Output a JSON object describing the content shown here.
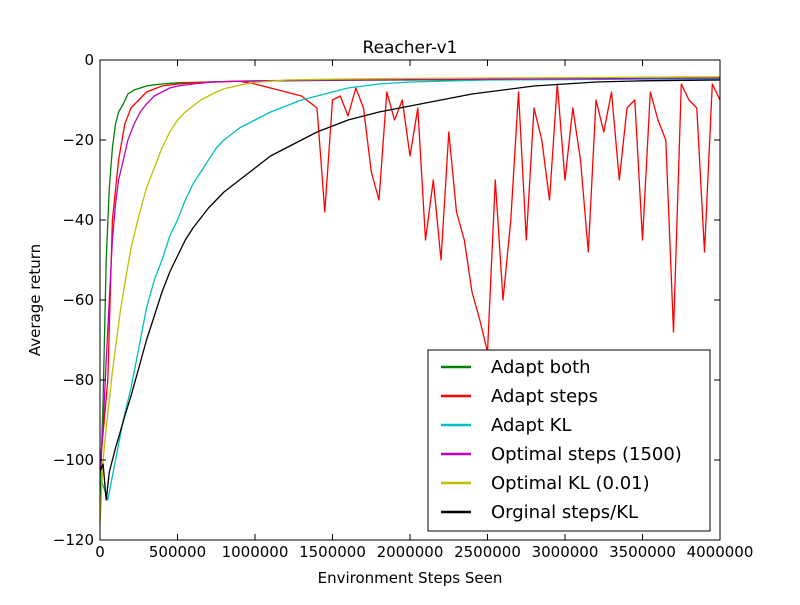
{
  "chart_data": {
    "type": "line",
    "title": "Reacher-v1",
    "xlabel": "Environment Steps Seen",
    "ylabel": "Average return",
    "xlim": [
      0,
      4000000
    ],
    "ylim": [
      -120,
      0
    ],
    "xticks": [
      0,
      500000,
      1000000,
      1500000,
      2000000,
      2500000,
      3000000,
      3500000,
      4000000
    ],
    "xtick_labels": [
      "0",
      "500000",
      "1000000",
      "1500000",
      "2000000",
      "2500000",
      "3000000",
      "3500000",
      "4000000"
    ],
    "yticks": [
      0,
      -20,
      -40,
      -60,
      -80,
      -100,
      -120
    ],
    "ytick_labels": [
      "0",
      "−20",
      "−40",
      "−60",
      "−80",
      "−100",
      "−120"
    ],
    "grid": false,
    "legend_position": "bottom-right",
    "series": [
      {
        "name": "Adapt both",
        "color": "#008000",
        "x": [
          0,
          20000,
          40000,
          60000,
          80000,
          100000,
          120000,
          150000,
          180000,
          220000,
          260000,
          300000,
          350000,
          400000,
          500000,
          600000,
          700000,
          800000,
          900000,
          1000000,
          1100000,
          1200000,
          1500000,
          2000000,
          2500000,
          3000000,
          3500000,
          4000000
        ],
        "y": [
          -110,
          -85,
          -50,
          -32,
          -22,
          -16,
          -13,
          -11,
          -8.5,
          -7.5,
          -7,
          -6.5,
          -6.2,
          -6,
          -5.7,
          -5.6,
          -5.5,
          -5.4,
          -5.3,
          -5.3,
          -5.2,
          -5.2,
          -5.1,
          -5,
          -4.9,
          -4.8,
          -4.7,
          -4.6
        ]
      },
      {
        "name": "Adapt steps",
        "color": "#ff0000",
        "x": [
          0,
          50000,
          80000,
          120000,
          160000,
          200000,
          250000,
          300000,
          400000,
          500000,
          600000,
          700000,
          800000,
          900000,
          1000000,
          1100000,
          1200000,
          1300000,
          1400000,
          1450000,
          1500000,
          1550000,
          1600000,
          1650000,
          1700000,
          1750000,
          1800000,
          1850000,
          1900000,
          1950000,
          2000000,
          2050000,
          2100000,
          2150000,
          2200000,
          2250000,
          2300000,
          2350000,
          2400000,
          2450000,
          2500000,
          2550000,
          2600000,
          2650000,
          2700000,
          2750000,
          2800000,
          2850000,
          2900000,
          2950000,
          3000000,
          3050000,
          3100000,
          3150000,
          3200000,
          3250000,
          3300000,
          3350000,
          3400000,
          3450000,
          3500000,
          3550000,
          3600000,
          3650000,
          3700000,
          3750000,
          3800000,
          3850000,
          3900000,
          3950000,
          4000000
        ],
        "y": [
          -102,
          -80,
          -40,
          -25,
          -16,
          -12,
          -10,
          -8,
          -6.5,
          -6,
          -5.7,
          -5.5,
          -5.4,
          -5.3,
          -6,
          -7,
          -8,
          -9,
          -12,
          -38,
          -10,
          -9,
          -14,
          -7,
          -12,
          -28,
          -35,
          -8,
          -15,
          -10,
          -24,
          -12,
          -45,
          -30,
          -50,
          -18,
          -38,
          -45,
          -58,
          -65,
          -73,
          -30,
          -60,
          -40,
          -8,
          -45,
          -12,
          -20,
          -35,
          -6,
          -30,
          -12,
          -25,
          -48,
          -10,
          -18,
          -8,
          -30,
          -12,
          -10,
          -45,
          -8,
          -15,
          -20,
          -68,
          -6,
          -10,
          -12,
          -48,
          -6,
          -10
        ]
      },
      {
        "name": "Adapt KL",
        "color": "#00bfbf",
        "x": [
          0,
          50000,
          100000,
          150000,
          200000,
          250000,
          300000,
          350000,
          400000,
          450000,
          500000,
          550000,
          600000,
          650000,
          700000,
          750000,
          800000,
          900000,
          1000000,
          1100000,
          1200000,
          1300000,
          1400000,
          1500000,
          1600000,
          1800000,
          2000000,
          2500000,
          3000000,
          3500000,
          4000000
        ],
        "y": [
          -104,
          -110,
          -100,
          -90,
          -82,
          -72,
          -62,
          -55,
          -50,
          -44,
          -40,
          -35,
          -31,
          -28,
          -25,
          -22,
          -20,
          -17,
          -15,
          -13,
          -11.5,
          -10,
          -9,
          -8,
          -7,
          -6,
          -5.5,
          -5,
          -4.9,
          -4.8,
          -4.8
        ]
      },
      {
        "name": "Optimal steps (1500)",
        "color": "#bf00bf",
        "x": [
          0,
          20000,
          40000,
          60000,
          80000,
          100000,
          120000,
          150000,
          180000,
          220000,
          260000,
          300000,
          350000,
          400000,
          450000,
          500000,
          600000,
          700000,
          800000,
          900000,
          1000000,
          1500000,
          2000000,
          2500000,
          3000000,
          3500000,
          4000000
        ],
        "y": [
          -102,
          -92,
          -75,
          -60,
          -45,
          -36,
          -30,
          -25,
          -20,
          -16,
          -13,
          -11,
          -9,
          -8,
          -7,
          -6.5,
          -6,
          -5.6,
          -5.4,
          -5.3,
          -5.2,
          -5,
          -4.9,
          -4.8,
          -4.7,
          -4.6,
          -4.5
        ]
      },
      {
        "name": "Optimal KL (0.01)",
        "color": "#bfbf00",
        "x": [
          0,
          20000,
          40000,
          60000,
          80000,
          100000,
          130000,
          160000,
          200000,
          250000,
          300000,
          350000,
          400000,
          450000,
          500000,
          550000,
          600000,
          650000,
          700000,
          750000,
          800000,
          900000,
          1000000,
          1200000,
          1500000,
          2000000,
          2500000,
          3000000,
          3500000,
          4000000
        ],
        "y": [
          -116,
          -100,
          -92,
          -85,
          -78,
          -72,
          -63,
          -56,
          -47,
          -39,
          -32,
          -27,
          -22,
          -18,
          -15,
          -13,
          -11.5,
          -10,
          -9,
          -8,
          -7.2,
          -6.3,
          -5.6,
          -5,
          -4.8,
          -4.6,
          -4.5,
          -4.4,
          -4.3,
          -4.2
        ]
      },
      {
        "name": "Orginal steps/KL",
        "color": "#000000",
        "x": [
          0,
          20000,
          40000,
          60000,
          80000,
          100000,
          130000,
          160000,
          200000,
          250000,
          300000,
          350000,
          400000,
          450000,
          500000,
          550000,
          600000,
          700000,
          800000,
          900000,
          1000000,
          1100000,
          1200000,
          1300000,
          1400000,
          1500000,
          1600000,
          1700000,
          1800000,
          2000000,
          2200000,
          2400000,
          2600000,
          2800000,
          3000000,
          3200000,
          3500000,
          4000000
        ],
        "y": [
          -103,
          -101,
          -110,
          -103,
          -100,
          -97,
          -93,
          -89,
          -84,
          -77,
          -70,
          -64,
          -58,
          -53,
          -49,
          -45,
          -42,
          -37,
          -33,
          -30,
          -27,
          -24,
          -22,
          -20,
          -18,
          -16.5,
          -15,
          -14,
          -13,
          -11.5,
          -10,
          -8.5,
          -7.5,
          -6.5,
          -6,
          -5.5,
          -5.2,
          -5
        ]
      }
    ]
  }
}
